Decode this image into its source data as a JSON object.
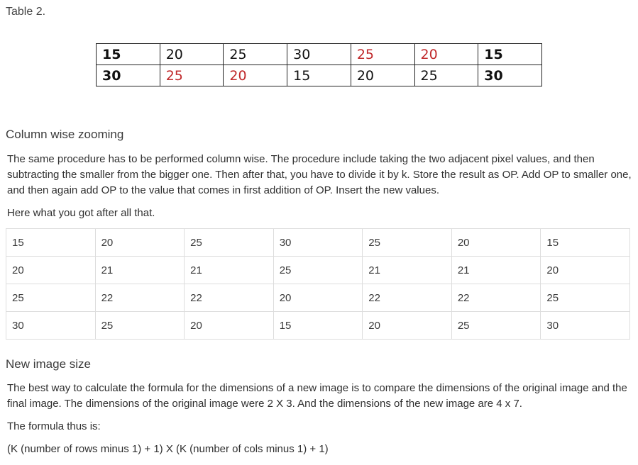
{
  "caption": "Table 2.",
  "table2": {
    "rows": [
      [
        {
          "v": "15",
          "bold": true,
          "red": false
        },
        {
          "v": "20",
          "bold": false,
          "red": false
        },
        {
          "v": "25",
          "bold": false,
          "red": false
        },
        {
          "v": "30",
          "bold": false,
          "red": false
        },
        {
          "v": "25",
          "bold": false,
          "red": true
        },
        {
          "v": "20",
          "bold": false,
          "red": true
        },
        {
          "v": "15",
          "bold": true,
          "red": false
        }
      ],
      [
        {
          "v": "30",
          "bold": true,
          "red": false
        },
        {
          "v": "25",
          "bold": false,
          "red": true
        },
        {
          "v": "20",
          "bold": false,
          "red": true
        },
        {
          "v": "15",
          "bold": false,
          "red": false
        },
        {
          "v": "20",
          "bold": false,
          "red": false
        },
        {
          "v": "25",
          "bold": false,
          "red": false
        },
        {
          "v": "30",
          "bold": true,
          "red": false
        }
      ]
    ],
    "accent_color": "#c0292b"
  },
  "section1": {
    "heading": "Column wise zooming",
    "paragraph": "The same procedure has to be performed column wise. The procedure include taking the two adjacent pixel values, and then subtracting the smaller from the bigger one. Then after that, you have to divide it by k. Store the result as OP. Add OP to smaller one, and then again add OP to the value that comes in first addition of OP. Insert the new values.",
    "intro": "Here what you got after all that."
  },
  "zoom_table": {
    "rows": [
      [
        "15",
        "20",
        "25",
        "30",
        "25",
        "20",
        "15"
      ],
      [
        "20",
        "21",
        "21",
        "25",
        "21",
        "21",
        "20"
      ],
      [
        "25",
        "22",
        "22",
        "20",
        "22",
        "22",
        "25"
      ],
      [
        "30",
        "25",
        "20",
        "15",
        "20",
        "25",
        "30"
      ]
    ]
  },
  "section2": {
    "heading": "New image size",
    "paragraph": "The best way to calculate the formula for the dimensions of a new image is to compare the dimensions of the original image and the final image. The dimensions of the original image were 2 X 3. And the dimensions of the new image are 4 x 7.",
    "formula_intro": "The formula thus is:",
    "formula": "(K (number of rows minus 1) + 1) X (K (number of cols minus 1) + 1)"
  }
}
